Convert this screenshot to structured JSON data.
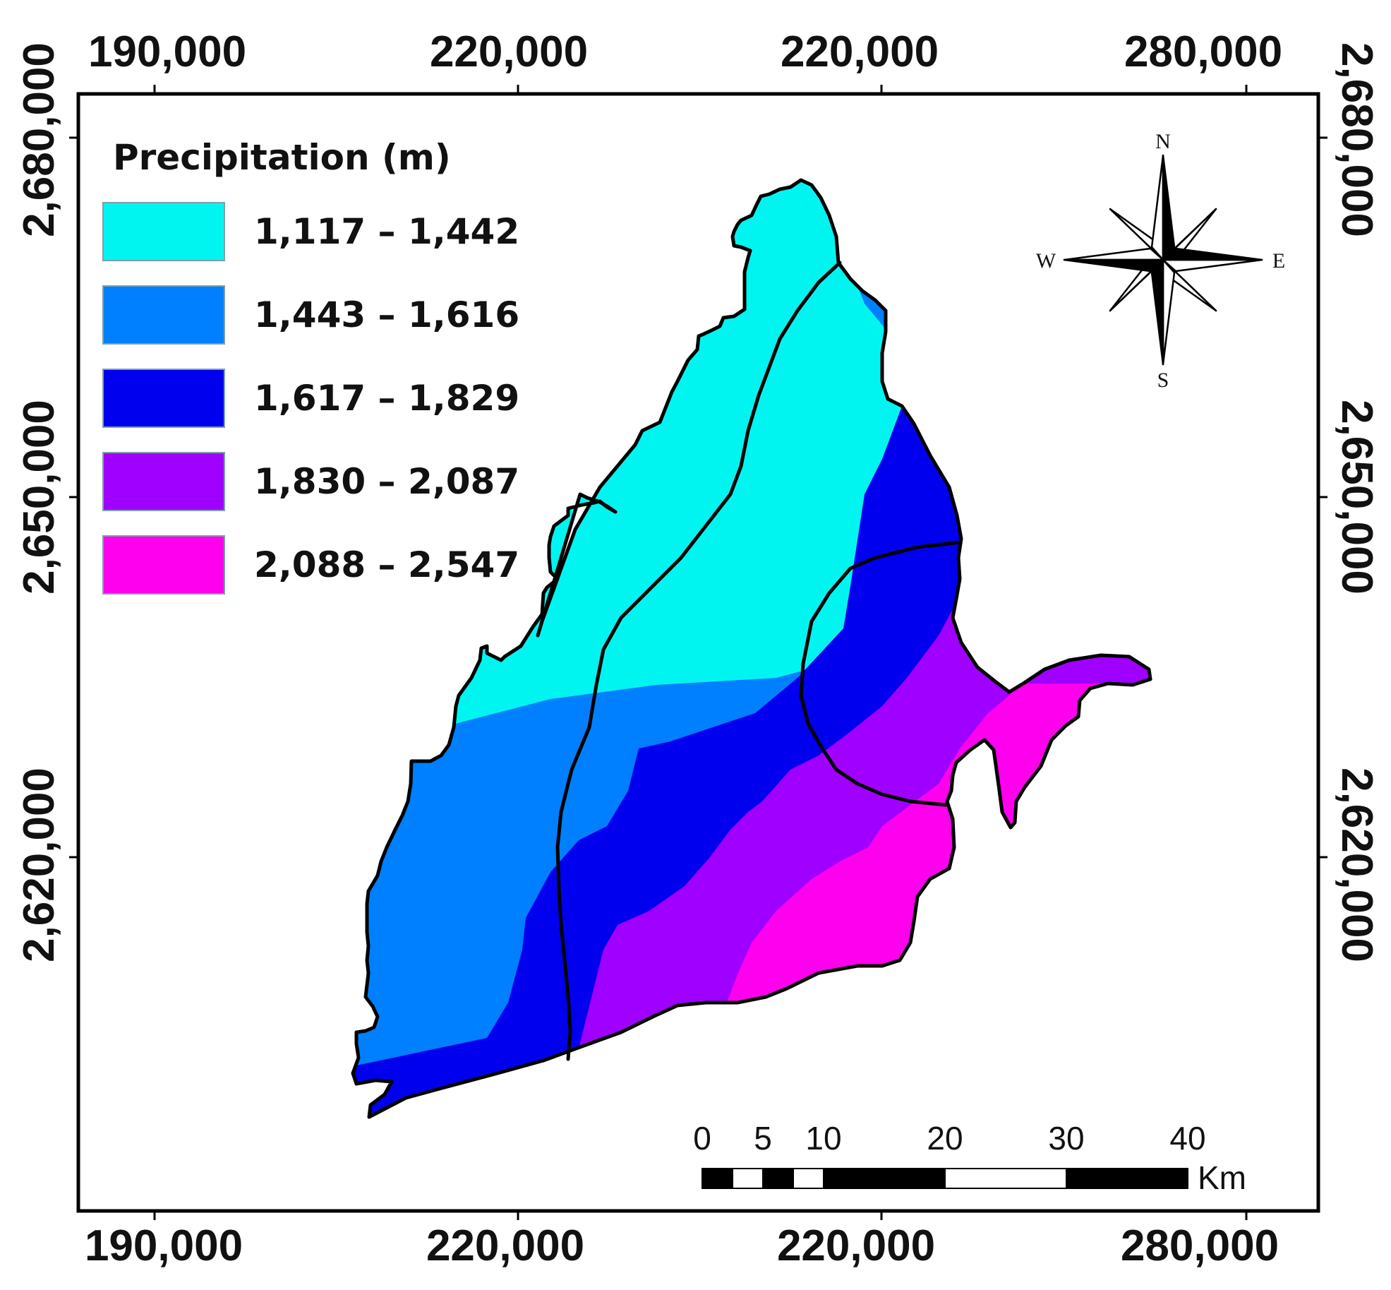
{
  "map": {
    "top_ticks": [
      "190,000",
      "220,000",
      "220,000",
      "280,000"
    ],
    "bottom_ticks": [
      "190,000",
      "220,000",
      "220,000",
      "280,000"
    ],
    "left_ticks": [
      "2,680,000",
      "2,650,000",
      "2,620,000"
    ],
    "right_ticks": [
      "2,680,000",
      "2,650,000",
      "2,620,000"
    ]
  },
  "legend": {
    "title": "Precipitation (m)",
    "classes": [
      {
        "label": "1,117  –  1,442",
        "color": "#00f5f0"
      },
      {
        "label": "1,443  –  1,616",
        "color": "#0080ff"
      },
      {
        "label": "1,617  –  1,829",
        "color": "#0000ee"
      },
      {
        "label": "1,830  –  2,087",
        "color": "#a000ff"
      },
      {
        "label": "2,088  –  2,547",
        "color": "#ff00ee"
      }
    ]
  },
  "compass": {
    "n": "N",
    "s": "S",
    "e": "E",
    "w": "W"
  },
  "scale_bar": {
    "labels": [
      "0",
      "5",
      "10",
      "20",
      "30",
      "40"
    ],
    "unit": "Km"
  }
}
